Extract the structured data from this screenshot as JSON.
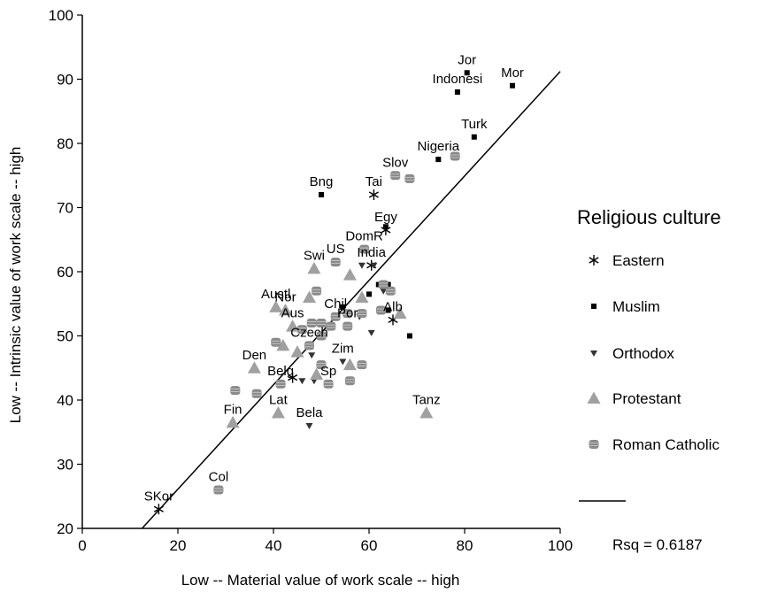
{
  "chart_data": {
    "type": "scatter",
    "xlabel": "Low -- Material value of work scale -- high",
    "ylabel": "Low -- Intrinsic value of work scale -- high",
    "xlim": [
      0,
      100
    ],
    "ylim": [
      20,
      100
    ],
    "xticks": [
      0,
      20,
      40,
      60,
      80,
      100
    ],
    "yticks": [
      20,
      30,
      40,
      50,
      60,
      70,
      80,
      90,
      100
    ],
    "grid": false,
    "legend": {
      "title": "Religious culture",
      "position": "right",
      "fit_label": "Rsq = 0.6187"
    },
    "fit_line": {
      "x": [
        12.5,
        100
      ],
      "y": [
        20,
        91.2
      ]
    },
    "series": [
      {
        "name": "Eastern",
        "marker": "asterisk",
        "color": "#000000",
        "points": [
          {
            "x": 16,
            "y": 23,
            "label": "SKor"
          },
          {
            "x": 61,
            "y": 72,
            "label": "Tai"
          },
          {
            "x": 63.5,
            "y": 66.5,
            "label": "Egy"
          },
          {
            "x": 60.5,
            "y": 61,
            "label": "India"
          },
          {
            "x": 65,
            "y": 52.5,
            "label": "Alb"
          },
          {
            "x": 44,
            "y": 43.5,
            "label": ""
          }
        ]
      },
      {
        "name": "Muslim",
        "marker": "square",
        "color": "#000000",
        "points": [
          {
            "x": 80.5,
            "y": 91,
            "label": "Jor"
          },
          {
            "x": 78.5,
            "y": 88,
            "label": "Indonesi"
          },
          {
            "x": 90,
            "y": 89,
            "label": "Mor"
          },
          {
            "x": 82,
            "y": 81,
            "label": "Turk"
          },
          {
            "x": 74.5,
            "y": 77.5,
            "label": "Nigeria"
          },
          {
            "x": 50,
            "y": 72,
            "label": "Bng"
          },
          {
            "x": 63.5,
            "y": 67,
            "label": ""
          },
          {
            "x": 62,
            "y": 58,
            "label": ""
          },
          {
            "x": 64,
            "y": 58,
            "label": ""
          },
          {
            "x": 60,
            "y": 56.5,
            "label": ""
          },
          {
            "x": 64,
            "y": 54,
            "label": ""
          },
          {
            "x": 68.5,
            "y": 50,
            "label": ""
          },
          {
            "x": 54.5,
            "y": 54.5,
            "label": ""
          }
        ]
      },
      {
        "name": "Orthodox",
        "marker": "triangle-down",
        "color": "#333333",
        "points": [
          {
            "x": 58.5,
            "y": 61,
            "label": ""
          },
          {
            "x": 61,
            "y": 61,
            "label": ""
          },
          {
            "x": 63,
            "y": 57,
            "label": ""
          },
          {
            "x": 60.5,
            "y": 50.5,
            "label": ""
          },
          {
            "x": 58,
            "y": 53,
            "label": ""
          },
          {
            "x": 48,
            "y": 47,
            "label": ""
          },
          {
            "x": 54.5,
            "y": 46,
            "label": "Zim"
          },
          {
            "x": 48.5,
            "y": 43,
            "label": ""
          },
          {
            "x": 46,
            "y": 43,
            "label": ""
          },
          {
            "x": 47.5,
            "y": 36,
            "label": "Bela"
          }
        ]
      },
      {
        "name": "Protestant",
        "marker": "triangle-up",
        "color": "#a0a0a0",
        "points": [
          {
            "x": 48.5,
            "y": 60.5,
            "label": "Swi"
          },
          {
            "x": 56,
            "y": 59.5,
            "label": ""
          },
          {
            "x": 40.5,
            "y": 54.5,
            "label": "Austl"
          },
          {
            "x": 47.5,
            "y": 56,
            "label": ""
          },
          {
            "x": 58.5,
            "y": 56,
            "label": ""
          },
          {
            "x": 42.5,
            "y": 54,
            "label": "Nor"
          },
          {
            "x": 44,
            "y": 51.5,
            "label": "Aus"
          },
          {
            "x": 66.5,
            "y": 53.5,
            "label": ""
          },
          {
            "x": 42,
            "y": 48.5,
            "label": ""
          },
          {
            "x": 45,
            "y": 47.5,
            "label": ""
          },
          {
            "x": 36,
            "y": 45,
            "label": "Den"
          },
          {
            "x": 56,
            "y": 45.5,
            "label": ""
          },
          {
            "x": 49,
            "y": 44,
            "label": ""
          },
          {
            "x": 41,
            "y": 38,
            "label": "Lat"
          },
          {
            "x": 31.5,
            "y": 36.5,
            "label": "Fin"
          },
          {
            "x": 72,
            "y": 38,
            "label": "Tanz"
          }
        ]
      },
      {
        "name": "Roman Catholic",
        "marker": "roundrect",
        "color": "#8a8a8a",
        "points": [
          {
            "x": 65.5,
            "y": 75,
            "label": "Slov"
          },
          {
            "x": 68.5,
            "y": 74.5,
            "label": ""
          },
          {
            "x": 78,
            "y": 78,
            "label": ""
          },
          {
            "x": 59,
            "y": 63.5,
            "label": "DomR"
          },
          {
            "x": 53,
            "y": 61.5,
            "label": "US"
          },
          {
            "x": 49,
            "y": 57,
            "label": ""
          },
          {
            "x": 63,
            "y": 58,
            "label": ""
          },
          {
            "x": 64.5,
            "y": 57,
            "label": ""
          },
          {
            "x": 53,
            "y": 53,
            "label": "Chil"
          },
          {
            "x": 55.5,
            "y": 53.5,
            "label": ""
          },
          {
            "x": 58.5,
            "y": 53.5,
            "label": ""
          },
          {
            "x": 62.5,
            "y": 54,
            "label": ""
          },
          {
            "x": 48,
            "y": 52,
            "label": ""
          },
          {
            "x": 50,
            "y": 52,
            "label": ""
          },
          {
            "x": 52,
            "y": 51.5,
            "label": ""
          },
          {
            "x": 55.5,
            "y": 51.5,
            "label": "Por"
          },
          {
            "x": 46,
            "y": 51,
            "label": ""
          },
          {
            "x": 50,
            "y": 50,
            "label": ""
          },
          {
            "x": 40.5,
            "y": 49,
            "label": ""
          },
          {
            "x": 47.5,
            "y": 48.5,
            "label": "Czech"
          },
          {
            "x": 58.5,
            "y": 45.5,
            "label": ""
          },
          {
            "x": 50,
            "y": 45.5,
            "label": ""
          },
          {
            "x": 41.5,
            "y": 42.5,
            "label": "Belg"
          },
          {
            "x": 51.5,
            "y": 42.5,
            "label": "Sp"
          },
          {
            "x": 56,
            "y": 43,
            "label": ""
          },
          {
            "x": 32,
            "y": 41.5,
            "label": ""
          },
          {
            "x": 36.5,
            "y": 41,
            "label": ""
          },
          {
            "x": 28.5,
            "y": 26,
            "label": "Col"
          }
        ]
      }
    ]
  }
}
